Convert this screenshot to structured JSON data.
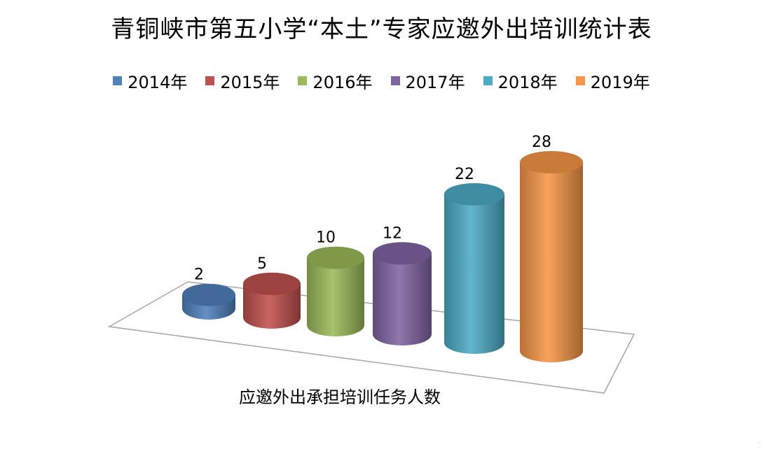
{
  "chart_data": {
    "type": "bar",
    "title": "青铜峡市第五小学“本土”专家应邀外出培训统计表",
    "xlabel": "应邀外出承担培训任务人数",
    "ylabel": "",
    "ylim": [
      0,
      28
    ],
    "grid": false,
    "legend_position": "top",
    "style": "3d-cylinder",
    "series": [
      {
        "name": "2014年",
        "color": "#4F81BD",
        "values": [
          2
        ]
      },
      {
        "name": "2015年",
        "color": "#C0504D",
        "values": [
          5
        ]
      },
      {
        "name": "2016年",
        "color": "#9BBB59",
        "values": [
          10
        ]
      },
      {
        "name": "2017年",
        "color": "#8064A2",
        "values": [
          12
        ]
      },
      {
        "name": "2018年",
        "color": "#4BACC6",
        "values": [
          22
        ]
      },
      {
        "name": "2019年",
        "color": "#F79646",
        "values": [
          28
        ]
      }
    ]
  }
}
